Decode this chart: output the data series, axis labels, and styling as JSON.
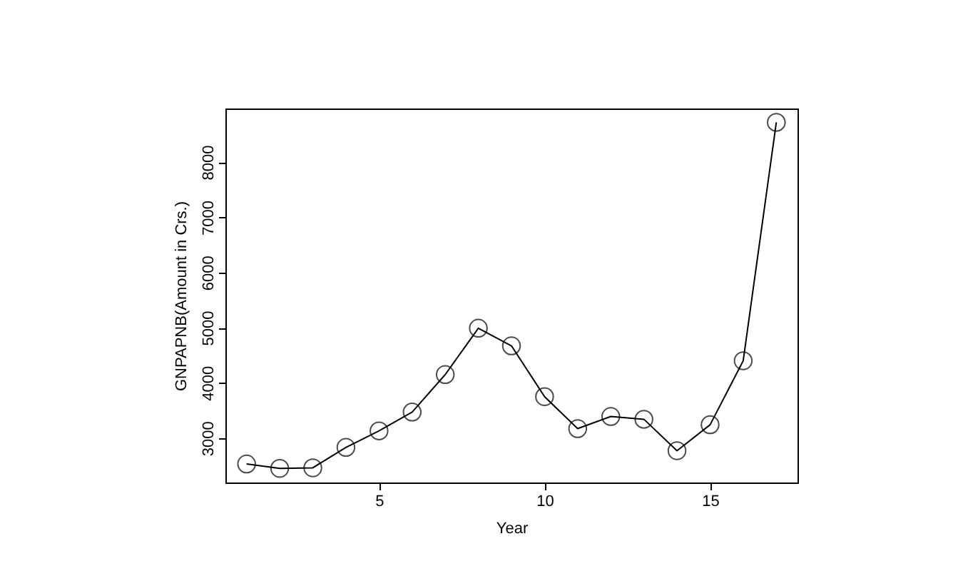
{
  "chart_data": {
    "type": "line",
    "xlabel": "Year",
    "ylabel": "GNPAPNB(Amount in Crs.)",
    "x": [
      1,
      2,
      3,
      4,
      5,
      6,
      7,
      8,
      9,
      10,
      11,
      12,
      13,
      14,
      15,
      16,
      17
    ],
    "series": [
      {
        "color": "#000000",
        "values": [
          2530,
          2450,
          2460,
          2830,
          3130,
          3470,
          4150,
          4990,
          4670,
          3750,
          3170,
          3390,
          3340,
          2770,
          3240,
          4400,
          8720
        ]
      }
    ],
    "xlim": [
      0.36,
      17.64
    ],
    "xticks": [
      5,
      10,
      15
    ],
    "ylim": [
      2194,
      8971
    ],
    "yticks": [
      3000,
      4000,
      5000,
      6000,
      7000,
      8000
    ],
    "grid": false,
    "legend": false,
    "marker": "circle",
    "line_style": "solid"
  }
}
